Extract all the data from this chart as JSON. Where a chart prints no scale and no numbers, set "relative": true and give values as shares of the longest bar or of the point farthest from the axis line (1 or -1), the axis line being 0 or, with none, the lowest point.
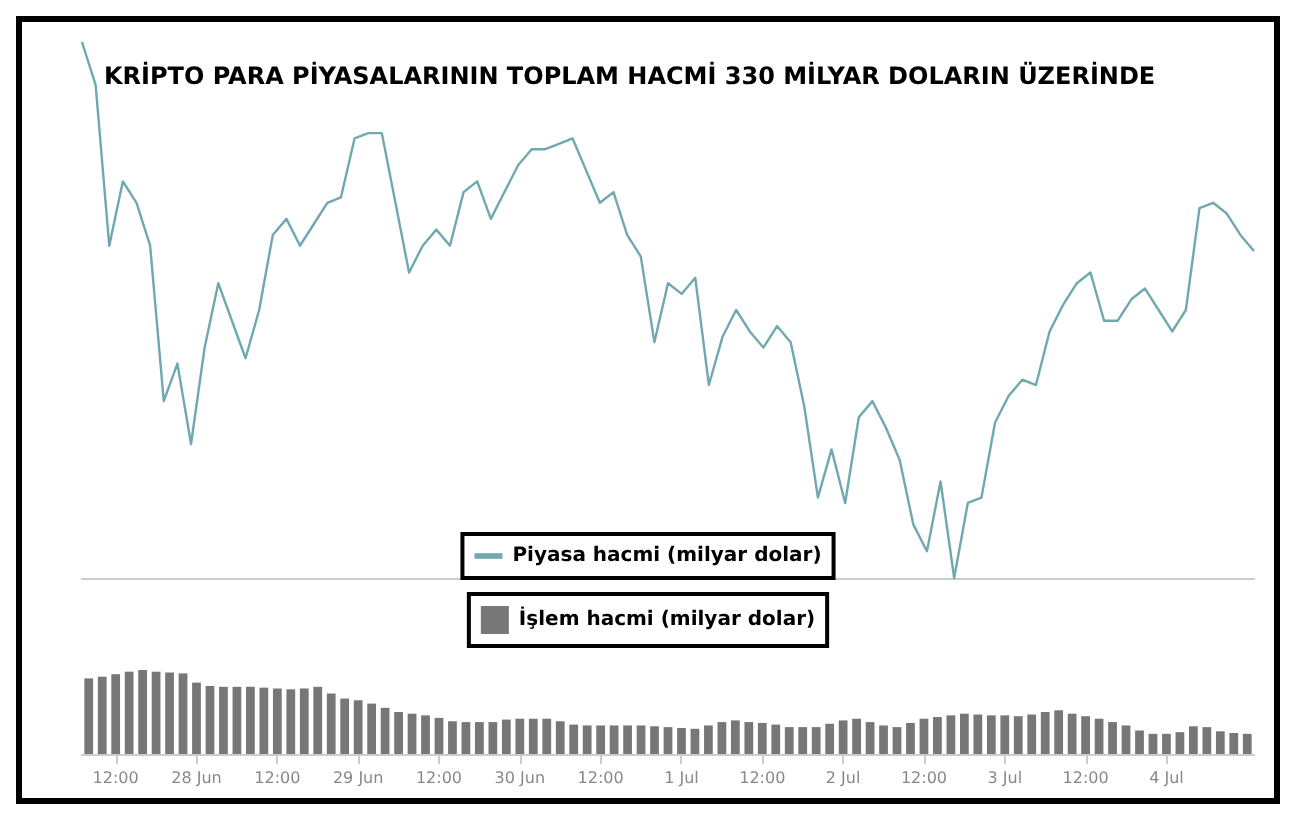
{
  "chart_data": [
    {
      "type": "line",
      "title": "KRİPTO PARA PİYASALARININ TOPLAM HACMİ 330 MİLYAR DOLARIN ÜZERİNDE",
      "relative": true,
      "tick_labels": false,
      "legend": "bottom",
      "categories": [
        null,
        null,
        null,
        null,
        null,
        null,
        null,
        null,
        null,
        null,
        null,
        null,
        null,
        null,
        null,
        null,
        null,
        null,
        null,
        null,
        null,
        null,
        null,
        null,
        null,
        null,
        null,
        null,
        null,
        null,
        null,
        null,
        null,
        null,
        null,
        null,
        null,
        null,
        null,
        null,
        null,
        null,
        null,
        null,
        null,
        null,
        null,
        null,
        null,
        null,
        null,
        null,
        null,
        null,
        null,
        null,
        null,
        null,
        null,
        null,
        null,
        null,
        null,
        null,
        null,
        null,
        null,
        null,
        null,
        null,
        null,
        null,
        null,
        null,
        null,
        null,
        null,
        null,
        null,
        null,
        null,
        null,
        null,
        null,
        null,
        null,
        null
      ],
      "series": [
        {
          "name": "Piyasa hacmi (milyar dolar)",
          "color": "#6fa8b0",
          "values": [
            1.0,
            0.92,
            0.62,
            0.74,
            0.7,
            0.62,
            0.33,
            0.4,
            0.25,
            0.43,
            0.55,
            0.48,
            0.41,
            0.5,
            0.64,
            0.67,
            0.62,
            0.66,
            0.7,
            0.71,
            0.82,
            0.83,
            0.83,
            0.7,
            0.57,
            0.62,
            0.65,
            0.62,
            0.72,
            0.74,
            0.67,
            0.72,
            0.77,
            0.8,
            0.8,
            0.81,
            0.82,
            0.76,
            0.7,
            0.72,
            0.64,
            0.6,
            0.44,
            0.55,
            0.53,
            0.56,
            0.36,
            0.45,
            0.5,
            0.46,
            0.43,
            0.47,
            0.44,
            0.32,
            0.15,
            0.24,
            0.14,
            0.3,
            0.33,
            0.28,
            0.22,
            0.1,
            0.05,
            0.18,
            0,
            0.14,
            0.15,
            0.29,
            0.34,
            0.37,
            0.36,
            0.46,
            0.51,
            0.55,
            0.57,
            0.48,
            0.48,
            0.52,
            0.54,
            0.5,
            0.46,
            0.5,
            0.69,
            0.7,
            0.68,
            0.64,
            0.61
          ]
        }
      ]
    },
    {
      "type": "bar",
      "relative": true,
      "legend": "top",
      "categories": [
        null,
        null,
        "12:00",
        null,
        null,
        null,
        null,
        null,
        "28 Jun",
        null,
        null,
        null,
        null,
        null,
        "12:00",
        null,
        null,
        null,
        null,
        null,
        "29 Jun",
        null,
        null,
        null,
        null,
        null,
        "12:00",
        null,
        null,
        null,
        null,
        null,
        "30 Jun",
        null,
        null,
        null,
        null,
        null,
        "12:00",
        null,
        null,
        null,
        null,
        null,
        "1 Jul",
        null,
        null,
        null,
        null,
        null,
        "12:00",
        null,
        null,
        null,
        null,
        null,
        "2 Jul",
        null,
        null,
        null,
        null,
        null,
        "12:00",
        null,
        null,
        null,
        null,
        null,
        "3 Jul",
        null,
        null,
        null,
        null,
        null,
        "12:00",
        null,
        null,
        null,
        null,
        null,
        "4 Jul",
        null,
        null,
        null,
        null,
        null,
        null
      ],
      "series": [
        {
          "name": "İşlem hacmi (milyar dolar)",
          "color": "#777777",
          "values": [
            0.9,
            0.92,
            0.95,
            0.98,
            1.0,
            0.98,
            0.97,
            0.96,
            0.85,
            0.81,
            0.8,
            0.8,
            0.8,
            0.79,
            0.78,
            0.77,
            0.78,
            0.8,
            0.72,
            0.66,
            0.64,
            0.6,
            0.55,
            0.5,
            0.48,
            0.46,
            0.43,
            0.39,
            0.38,
            0.38,
            0.38,
            0.41,
            0.42,
            0.42,
            0.42,
            0.39,
            0.35,
            0.34,
            0.34,
            0.34,
            0.34,
            0.34,
            0.33,
            0.32,
            0.31,
            0.3,
            0.34,
            0.38,
            0.4,
            0.38,
            0.37,
            0.35,
            0.32,
            0.32,
            0.32,
            0.36,
            0.4,
            0.42,
            0.38,
            0.34,
            0.32,
            0.37,
            0.42,
            0.44,
            0.46,
            0.48,
            0.47,
            0.46,
            0.46,
            0.45,
            0.47,
            0.5,
            0.52,
            0.48,
            0.45,
            0.42,
            0.38,
            0.34,
            0.28,
            0.24,
            0.24,
            0.26,
            0.33,
            0.32,
            0.27,
            0.25,
            0.24
          ]
        }
      ]
    }
  ]
}
